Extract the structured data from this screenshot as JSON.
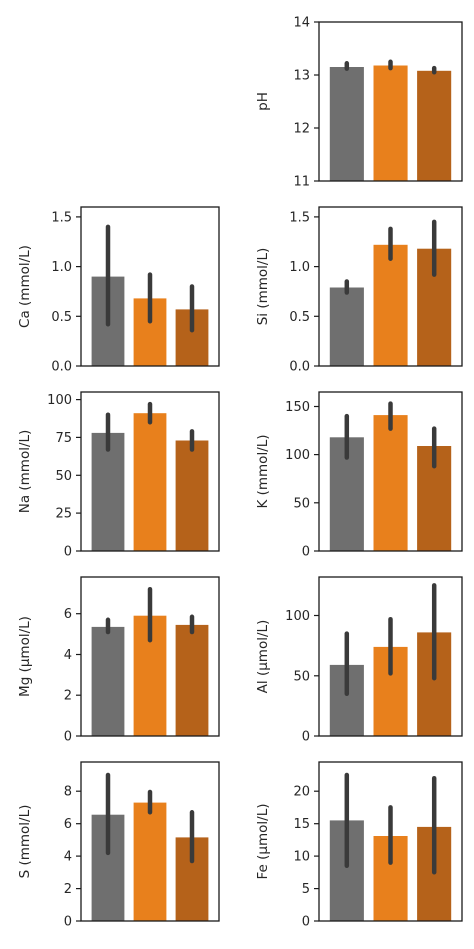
{
  "figure": {
    "bar_colors": [
      "#6f6f6f",
      "#e8801c",
      "#b5621a"
    ],
    "error_bar_color": "#3a3a3a",
    "background": "#ffffff"
  },
  "chart_data": [
    {
      "type": "bar",
      "ylabel": "pH",
      "ylim": [
        11,
        14
      ],
      "yticks": [
        "11",
        "12",
        "13",
        "14"
      ],
      "ytick_values": [
        11,
        12,
        13,
        14
      ],
      "values": [
        13.15,
        13.18,
        13.08
      ],
      "errors": [
        [
          13.12,
          13.22
        ],
        [
          13.13,
          13.25
        ],
        [
          13.05,
          13.13
        ]
      ],
      "grid": false,
      "legend": "none"
    },
    {
      "type": "bar",
      "ylabel": "Ca (mmol/L)",
      "ylim": [
        0,
        1.6
      ],
      "yticks": [
        "0.0",
        "0.5",
        "1.0",
        "1.5"
      ],
      "ytick_values": [
        0,
        0.5,
        1.0,
        1.5
      ],
      "values": [
        0.9,
        0.68,
        0.57
      ],
      "errors": [
        [
          0.42,
          1.4
        ],
        [
          0.45,
          0.92
        ],
        [
          0.36,
          0.8
        ]
      ],
      "grid": false,
      "legend": "none"
    },
    {
      "type": "bar",
      "ylabel": "Si (mmol/L)",
      "ylim": [
        0,
        1.6
      ],
      "yticks": [
        "0.0",
        "0.5",
        "1.0",
        "1.5"
      ],
      "ytick_values": [
        0,
        0.5,
        1.0,
        1.5
      ],
      "values": [
        0.79,
        1.22,
        1.18
      ],
      "errors": [
        [
          0.74,
          0.85
        ],
        [
          1.08,
          1.38
        ],
        [
          0.92,
          1.45
        ]
      ],
      "grid": false,
      "legend": "none"
    },
    {
      "type": "bar",
      "ylabel": "Na (mmol/L)",
      "ylim": [
        0,
        105
      ],
      "yticks": [
        "0",
        "25",
        "50",
        "75",
        "100"
      ],
      "ytick_values": [
        0,
        25,
        50,
        75,
        100
      ],
      "values": [
        78,
        91,
        73
      ],
      "errors": [
        [
          67,
          90
        ],
        [
          85,
          97
        ],
        [
          67,
          79
        ]
      ],
      "grid": false,
      "legend": "none"
    },
    {
      "type": "bar",
      "ylabel": "K (mmol/L)",
      "ylim": [
        0,
        165
      ],
      "yticks": [
        "0",
        "50",
        "100",
        "150"
      ],
      "ytick_values": [
        0,
        50,
        100,
        150
      ],
      "values": [
        118,
        141,
        109
      ],
      "errors": [
        [
          97,
          140
        ],
        [
          127,
          153
        ],
        [
          88,
          127
        ]
      ],
      "grid": false,
      "legend": "none"
    },
    {
      "type": "bar",
      "ylabel": "Mg (µmol/L)",
      "ylim": [
        0,
        7.8
      ],
      "yticks": [
        "0",
        "2",
        "4",
        "6"
      ],
      "ytick_values": [
        0,
        2,
        4,
        6
      ],
      "values": [
        5.35,
        5.9,
        5.45
      ],
      "errors": [
        [
          5.1,
          5.7
        ],
        [
          4.7,
          7.2
        ],
        [
          5.1,
          5.85
        ]
      ],
      "grid": false,
      "legend": "none"
    },
    {
      "type": "bar",
      "ylabel": "Al (µmol/L)",
      "ylim": [
        0,
        132
      ],
      "yticks": [
        "0",
        "50",
        "100"
      ],
      "ytick_values": [
        0,
        50,
        100
      ],
      "values": [
        59,
        74,
        86
      ],
      "errors": [
        [
          35,
          85
        ],
        [
          52,
          97
        ],
        [
          48,
          125
        ]
      ],
      "grid": false,
      "legend": "none"
    },
    {
      "type": "bar",
      "ylabel": "S (mmol/L)",
      "ylim": [
        0,
        9.8
      ],
      "yticks": [
        "0",
        "2",
        "4",
        "6",
        "8"
      ],
      "ytick_values": [
        0,
        2,
        4,
        6,
        8
      ],
      "values": [
        6.55,
        7.3,
        5.15
      ],
      "errors": [
        [
          4.2,
          9.0
        ],
        [
          6.7,
          7.95
        ],
        [
          3.7,
          6.7
        ]
      ],
      "grid": false,
      "legend": "none"
    },
    {
      "type": "bar",
      "ylabel": "Fe (µmol/L)",
      "ylim": [
        0,
        24.5
      ],
      "yticks": [
        "0",
        "5",
        "10",
        "15",
        "20"
      ],
      "ytick_values": [
        0,
        5,
        10,
        15,
        20
      ],
      "values": [
        15.5,
        13.1,
        14.5
      ],
      "errors": [
        [
          8.5,
          22.5
        ],
        [
          9.0,
          17.5
        ],
        [
          7.5,
          22.0
        ]
      ],
      "grid": false,
      "legend": "none"
    }
  ]
}
